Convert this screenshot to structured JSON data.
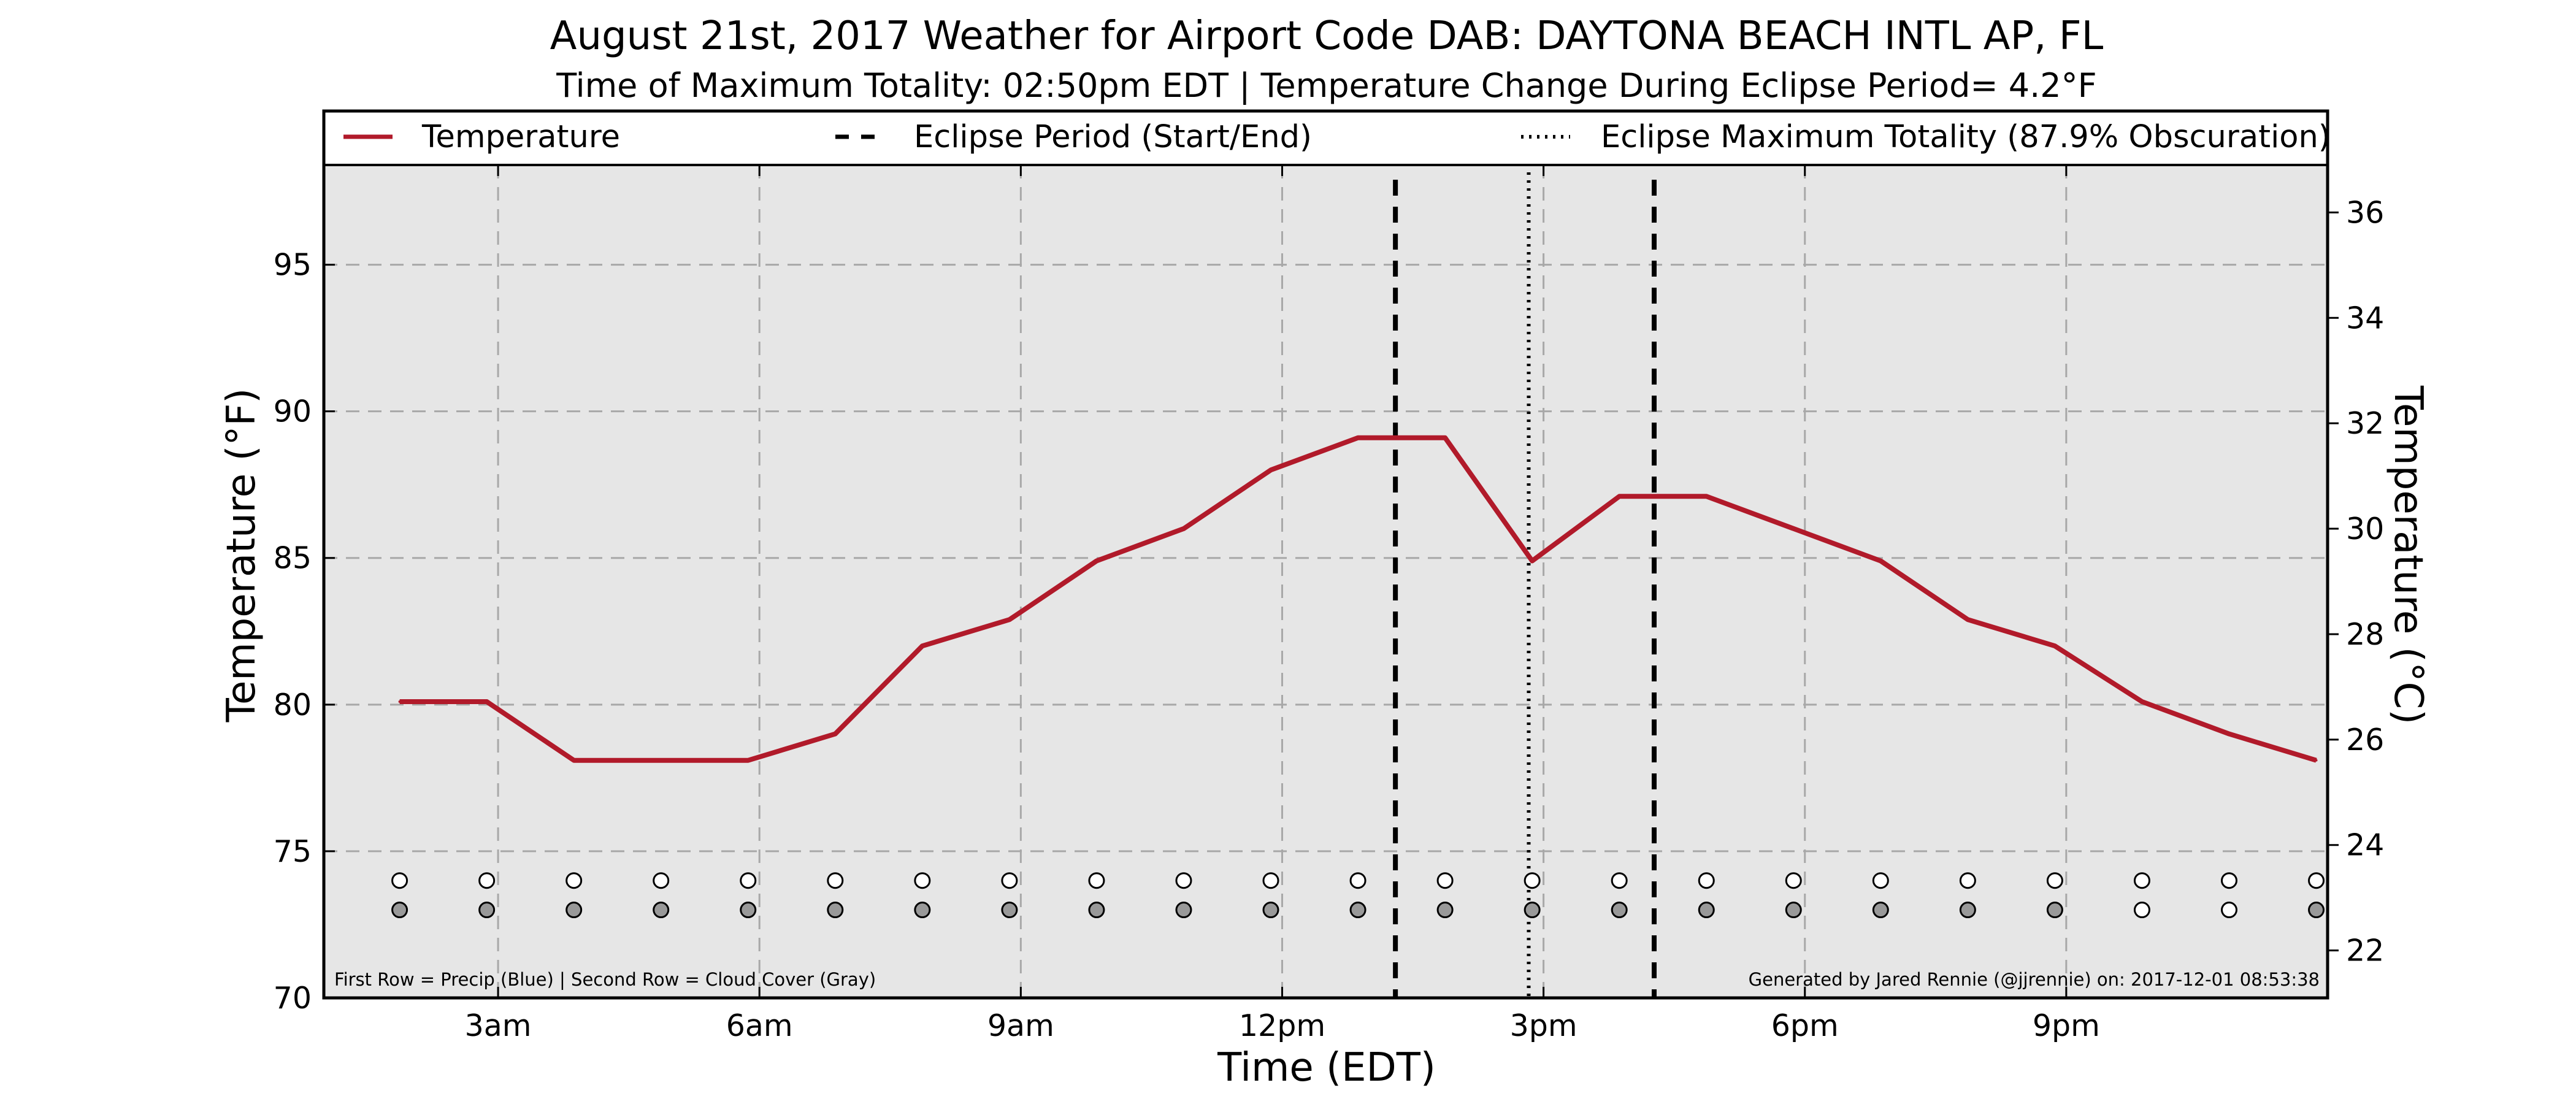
{
  "colors": {
    "temperature_line": "#b11a2a",
    "plot_background": "#e6e6e6",
    "precip_marker": "#ffffff",
    "cloud_marker_filled": "#999999",
    "cloud_marker_empty": "#ffffff"
  },
  "chart_data": {
    "type": "line",
    "title": "August 21st, 2017 Weather for Airport Code DAB: DAYTONA BEACH INTL AP, FL",
    "subtitle": "Time of Maximum Totality: 02:50pm EDT | Temperature Change During Eclipse Period= 4.2°F",
    "xlabel": "Time (EDT)",
    "ylabel": "Temperature (°F)",
    "ylabel_right": "Temperature (°C)",
    "xlim_hours": [
      1,
      24
    ],
    "ylim": [
      70,
      98.4
    ],
    "ylim_right": [
      21.1,
      36.9
    ],
    "x_ticks": [
      {
        "hour": 3,
        "label": "3am"
      },
      {
        "hour": 6,
        "label": "6am"
      },
      {
        "hour": 9,
        "label": "9am"
      },
      {
        "hour": 12,
        "label": "12pm"
      },
      {
        "hour": 15,
        "label": "3pm"
      },
      {
        "hour": 18,
        "label": "6pm"
      },
      {
        "hour": 21,
        "label": "9pm"
      }
    ],
    "y_ticks": [
      70,
      75,
      80,
      85,
      90,
      95
    ],
    "y_ticks_right": [
      22,
      24,
      26,
      28,
      30,
      32,
      34,
      36
    ],
    "grid": true,
    "legend_placement": "top, spanning full width",
    "legend": [
      {
        "label": "Temperature",
        "style": "solid"
      },
      {
        "label": "Eclipse Period (Start/End)",
        "style": "dashed"
      },
      {
        "label": "Eclipse Maximum Totality (87.9% Obscuration)",
        "style": "dotted"
      }
    ],
    "series": [
      {
        "name": "Temperature",
        "x_hours": [
          1.87,
          2.87,
          3.87,
          4.87,
          5.87,
          6.87,
          7.87,
          8.87,
          9.87,
          10.87,
          11.87,
          12.87,
          13.87,
          14.87,
          15.87,
          16.87,
          17.87,
          18.87,
          19.87,
          20.87,
          21.87,
          22.87,
          23.87
        ],
        "values": [
          80.1,
          80.1,
          78.1,
          78.1,
          78.1,
          79.0,
          82.0,
          82.9,
          84.9,
          86.0,
          88.0,
          89.1,
          89.1,
          84.9,
          87.1,
          87.1,
          86.0,
          84.9,
          82.9,
          82.0,
          80.1,
          79.0,
          78.1
        ]
      }
    ],
    "eclipse_start_hour": 13.3,
    "eclipse_end_hour": 16.27,
    "eclipse_max_hour": 14.83,
    "marker_rows": {
      "precip_y": 74.0,
      "cloud_y": 73.0,
      "x_hours": [
        1.87,
        2.87,
        3.87,
        4.87,
        5.87,
        6.87,
        7.87,
        8.87,
        9.87,
        10.87,
        11.87,
        12.87,
        13.87,
        14.87,
        15.87,
        16.87,
        17.87,
        18.87,
        19.87,
        20.87,
        21.87,
        22.87,
        23.87
      ],
      "precip_filled": [
        false,
        false,
        false,
        false,
        false,
        false,
        false,
        false,
        false,
        false,
        false,
        false,
        false,
        false,
        false,
        false,
        false,
        false,
        false,
        false,
        false,
        false,
        false
      ],
      "cloud_filled": [
        true,
        true,
        true,
        true,
        true,
        true,
        true,
        true,
        true,
        true,
        true,
        true,
        true,
        true,
        true,
        true,
        true,
        true,
        true,
        true,
        false,
        false,
        true
      ]
    },
    "footnote_left": "First Row = Precip (Blue) | Second Row = Cloud Cover (Gray)",
    "footnote_right": "Generated by Jared Rennie (@jjrennie) on: 2017-12-01 08:53:38"
  }
}
